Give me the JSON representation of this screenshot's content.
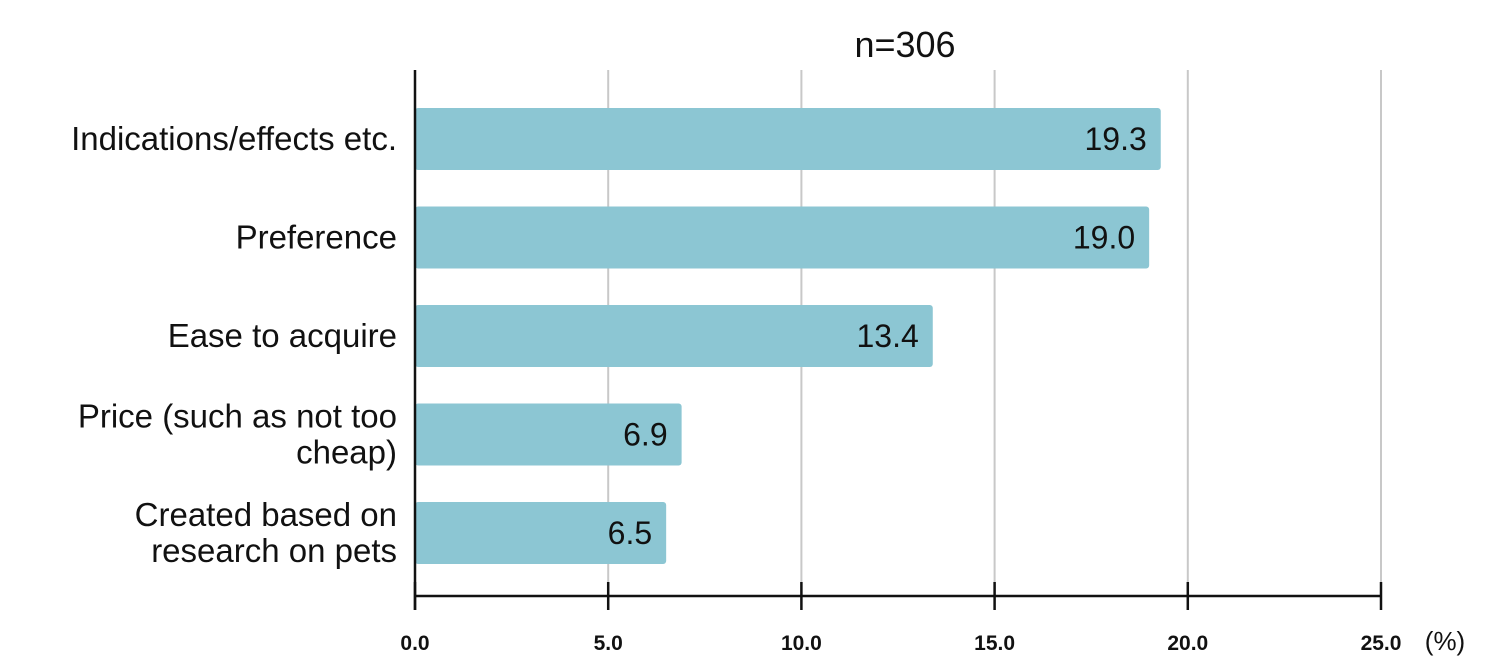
{
  "chart_data": {
    "type": "bar",
    "orientation": "horizontal",
    "title": "n=306",
    "categories": [
      "Indications/effects etc.",
      "Preference",
      "Ease to acquire",
      "Price (such as not too cheap)",
      "Created based on research on pets"
    ],
    "category_lines": [
      [
        "Indications/effects etc."
      ],
      [
        "Preference"
      ],
      [
        "Ease to acquire"
      ],
      [
        "Price (such as not too",
        "cheap)"
      ],
      [
        "Created based on",
        "research on pets"
      ]
    ],
    "values": [
      19.3,
      19.0,
      13.4,
      6.9,
      6.5
    ],
    "value_labels": [
      "19.3",
      "19.0",
      "13.4",
      "6.9",
      "6.5"
    ],
    "xlim": [
      0,
      25
    ],
    "x_ticks": [
      0,
      5,
      10,
      15,
      20,
      25
    ],
    "x_tick_labels": [
      "0.0",
      "5.0",
      "10.0",
      "15.0",
      "20.0",
      "25.0"
    ],
    "x_unit": "(%)",
    "grid": true,
    "bar_color": "#8cc6d3",
    "grid_color": "#c8c8c8"
  }
}
